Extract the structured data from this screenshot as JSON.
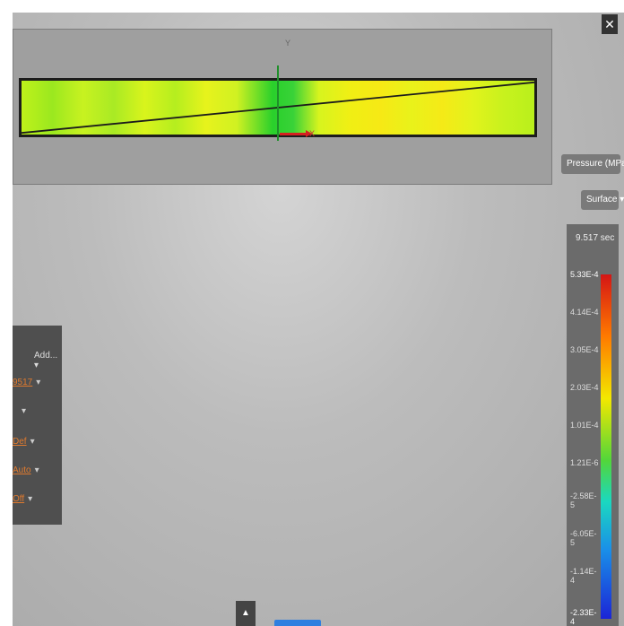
{
  "viewport": {
    "axis_y_label": "Y",
    "axis_x_label": "X"
  },
  "controls": {
    "close_label": "✕",
    "result_dropdown": "Pressure (MPa) ▾",
    "display_dropdown": "Surface ▾"
  },
  "legend": {
    "title": "9.517 sec",
    "labels": [
      "5.33E-4",
      "4.14E-4",
      "3.05E-4",
      "2.03E-4",
      "1.01E-4",
      "1.21E-6",
      "-2.58E-5",
      "-6.05E-5",
      "-1.14E-4",
      "-2.33E-4"
    ],
    "colors": {
      "max": "#d41515",
      "min": "#1b25d6"
    }
  },
  "side_panel": {
    "add_label": "Add... ▾",
    "rows": [
      {
        "text": "9517",
        "caret": "▾"
      },
      {
        "text": "",
        "caret": "▾"
      },
      {
        "text": "Def",
        "caret": "▾"
      },
      {
        "text": "Auto",
        "caret": "▾"
      },
      {
        "text": "Off",
        "caret": "▾"
      }
    ]
  },
  "bottom": {
    "tab_label": "▲"
  }
}
